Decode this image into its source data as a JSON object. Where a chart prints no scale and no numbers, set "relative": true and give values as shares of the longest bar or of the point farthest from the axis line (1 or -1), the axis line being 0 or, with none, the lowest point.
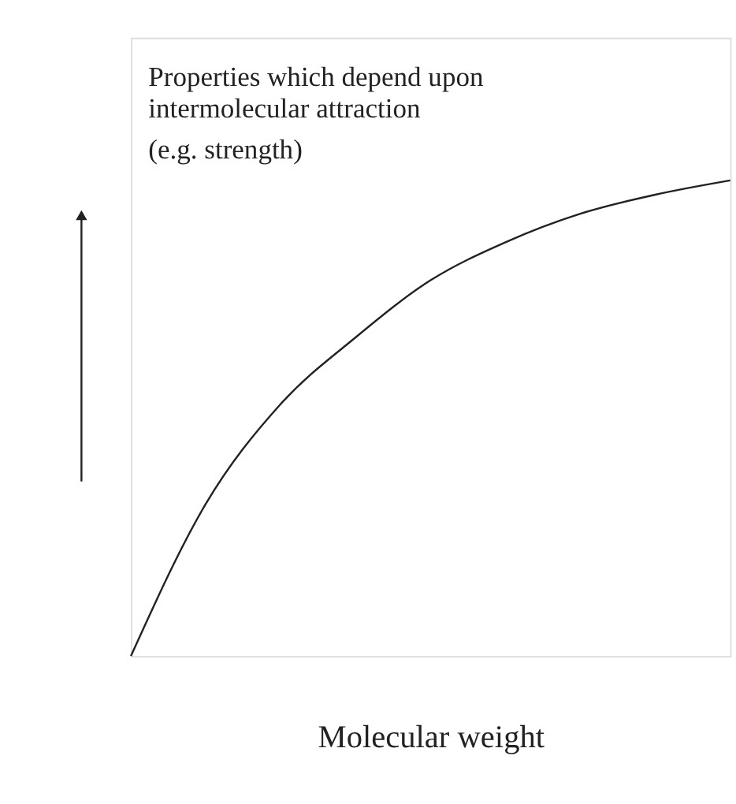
{
  "chart_data": {
    "type": "line",
    "relative": true,
    "xlabel": "Molecular weight",
    "annotations": [
      "Properties which depend upon intermolecular attraction",
      "(e.g. strength)"
    ],
    "categories": [
      null,
      null,
      null,
      null,
      null,
      null,
      null,
      null,
      null
    ],
    "series": [
      {
        "color": "#222222",
        "values": [
          0,
          0.32,
          0.53,
          0.67,
          0.79,
          0.87,
          0.93,
          0.97,
          1
        ]
      }
    ],
    "grid": false,
    "legend": false,
    "tick_labels": false,
    "marker": "none",
    "line_style": "solid"
  }
}
